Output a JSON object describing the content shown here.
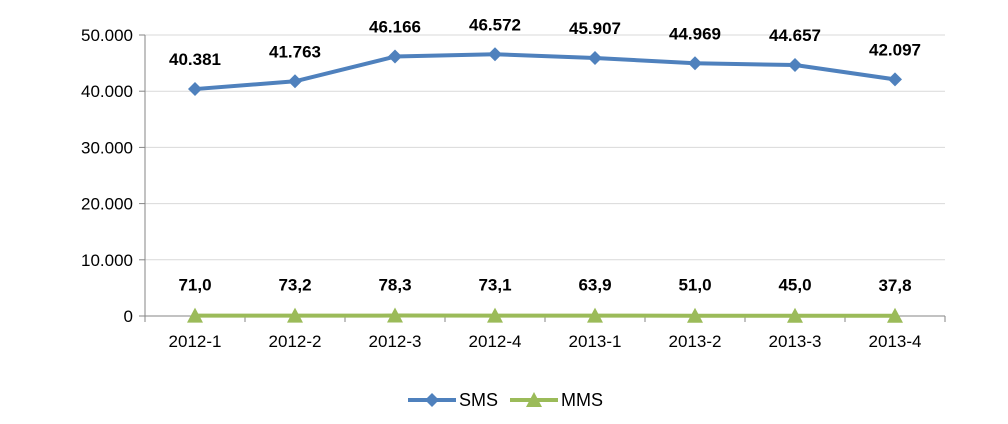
{
  "chart_data": {
    "type": "line",
    "categories": [
      "2012-1",
      "2012-2",
      "2012-3",
      "2012-4",
      "2013-1",
      "2013-2",
      "2013-3",
      "2013-4"
    ],
    "series": [
      {
        "name": "SMS",
        "values": [
          40381,
          41763,
          46166,
          46572,
          45907,
          44969,
          44657,
          42097
        ],
        "labels": [
          "40.381",
          "41.763",
          "46.166",
          "46.572",
          "45.907",
          "44.969",
          "44.657",
          "42.097"
        ],
        "color": "#4F81BD",
        "marker": "diamond"
      },
      {
        "name": "MMS",
        "values": [
          71.0,
          73.2,
          78.3,
          73.1,
          63.9,
          51.0,
          45.0,
          37.8
        ],
        "labels": [
          "71,0",
          "73,2",
          "78,3",
          "73,1",
          "63,9",
          "51,0",
          "45,0",
          "37,8"
        ],
        "color": "#9BBB59",
        "marker": "triangle"
      }
    ],
    "ylim": [
      0,
      50000
    ],
    "yticks": [
      {
        "value": 0,
        "label": "0"
      },
      {
        "value": 10000,
        "label": "10.000"
      },
      {
        "value": 20000,
        "label": "20.000"
      },
      {
        "value": 30000,
        "label": "30.000"
      },
      {
        "value": 40000,
        "label": "40.000"
      },
      {
        "value": 50000,
        "label": "50.000"
      }
    ],
    "grid": true,
    "legend_position": "bottom",
    "title": "",
    "xlabel": "",
    "ylabel": ""
  }
}
